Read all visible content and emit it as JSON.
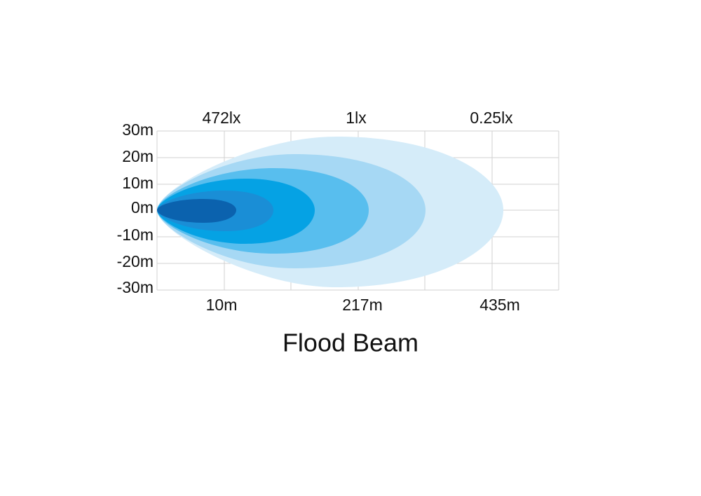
{
  "title": "Flood Beam",
  "y_axis_labels": [
    "30m",
    "20m",
    "10m",
    "0m",
    "-10m",
    "-20m",
    "-30m"
  ],
  "illuminance_labels": [
    "472lx",
    "1lx",
    "0.25lx"
  ],
  "distance_labels": [
    "10m",
    "217m",
    "435m"
  ]
}
